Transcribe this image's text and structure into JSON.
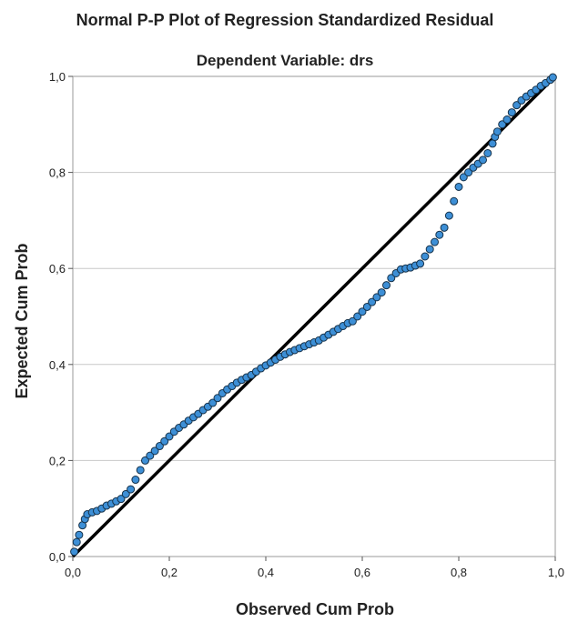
{
  "chart_data": {
    "type": "scatter",
    "title": "Normal P-P Plot of Regression Standardized Residual",
    "subtitle": "Dependent Variable: drs",
    "xlabel": "Observed Cum Prob",
    "ylabel": "Expected Cum Prob",
    "xlim": [
      0,
      1
    ],
    "ylim": [
      0,
      1
    ],
    "x_ticks": [
      "0,0",
      "0,2",
      "0,4",
      "0,6",
      "0,8",
      "1,0"
    ],
    "y_ticks": [
      "0,0",
      "0,2",
      "0,4",
      "0,6",
      "0,8",
      "1,0"
    ],
    "grid": "horizontal",
    "reference_line": [
      [
        0,
        0
      ],
      [
        1,
        1
      ]
    ],
    "colors": {
      "point_fill": "#3d8fd6",
      "point_stroke": "#16324a",
      "line": "#000000",
      "grid": "#c8c8c8",
      "frame": "#9a9a9a"
    },
    "points": [
      [
        0.003,
        0.01
      ],
      [
        0.008,
        0.03
      ],
      [
        0.013,
        0.045
      ],
      [
        0.02,
        0.065
      ],
      [
        0.025,
        0.078
      ],
      [
        0.03,
        0.088
      ],
      [
        0.04,
        0.092
      ],
      [
        0.05,
        0.095
      ],
      [
        0.06,
        0.1
      ],
      [
        0.07,
        0.106
      ],
      [
        0.08,
        0.11
      ],
      [
        0.09,
        0.115
      ],
      [
        0.1,
        0.12
      ],
      [
        0.11,
        0.13
      ],
      [
        0.12,
        0.14
      ],
      [
        0.13,
        0.16
      ],
      [
        0.14,
        0.18
      ],
      [
        0.15,
        0.2
      ],
      [
        0.16,
        0.21
      ],
      [
        0.17,
        0.22
      ],
      [
        0.18,
        0.23
      ],
      [
        0.19,
        0.24
      ],
      [
        0.2,
        0.25
      ],
      [
        0.21,
        0.26
      ],
      [
        0.22,
        0.268
      ],
      [
        0.23,
        0.275
      ],
      [
        0.24,
        0.283
      ],
      [
        0.25,
        0.29
      ],
      [
        0.26,
        0.297
      ],
      [
        0.27,
        0.305
      ],
      [
        0.28,
        0.312
      ],
      [
        0.29,
        0.32
      ],
      [
        0.3,
        0.33
      ],
      [
        0.31,
        0.34
      ],
      [
        0.32,
        0.348
      ],
      [
        0.33,
        0.355
      ],
      [
        0.34,
        0.362
      ],
      [
        0.35,
        0.368
      ],
      [
        0.36,
        0.373
      ],
      [
        0.37,
        0.378
      ],
      [
        0.38,
        0.385
      ],
      [
        0.39,
        0.392
      ],
      [
        0.4,
        0.398
      ],
      [
        0.41,
        0.404
      ],
      [
        0.42,
        0.41
      ],
      [
        0.43,
        0.416
      ],
      [
        0.44,
        0.421
      ],
      [
        0.45,
        0.426
      ],
      [
        0.46,
        0.43
      ],
      [
        0.47,
        0.434
      ],
      [
        0.48,
        0.438
      ],
      [
        0.49,
        0.442
      ],
      [
        0.5,
        0.446
      ],
      [
        0.51,
        0.45
      ],
      [
        0.52,
        0.456
      ],
      [
        0.53,
        0.462
      ],
      [
        0.54,
        0.468
      ],
      [
        0.55,
        0.474
      ],
      [
        0.56,
        0.48
      ],
      [
        0.57,
        0.486
      ],
      [
        0.58,
        0.49
      ],
      [
        0.59,
        0.5
      ],
      [
        0.6,
        0.51
      ],
      [
        0.61,
        0.52
      ],
      [
        0.62,
        0.53
      ],
      [
        0.63,
        0.54
      ],
      [
        0.64,
        0.55
      ],
      [
        0.65,
        0.565
      ],
      [
        0.66,
        0.58
      ],
      [
        0.67,
        0.59
      ],
      [
        0.68,
        0.598
      ],
      [
        0.69,
        0.6
      ],
      [
        0.7,
        0.602
      ],
      [
        0.71,
        0.606
      ],
      [
        0.72,
        0.61
      ],
      [
        0.73,
        0.625
      ],
      [
        0.74,
        0.64
      ],
      [
        0.75,
        0.655
      ],
      [
        0.76,
        0.67
      ],
      [
        0.77,
        0.685
      ],
      [
        0.78,
        0.71
      ],
      [
        0.79,
        0.74
      ],
      [
        0.8,
        0.77
      ],
      [
        0.81,
        0.79
      ],
      [
        0.82,
        0.8
      ],
      [
        0.83,
        0.81
      ],
      [
        0.84,
        0.818
      ],
      [
        0.85,
        0.826
      ],
      [
        0.86,
        0.84
      ],
      [
        0.87,
        0.86
      ],
      [
        0.875,
        0.874
      ],
      [
        0.88,
        0.885
      ],
      [
        0.89,
        0.9
      ],
      [
        0.9,
        0.91
      ],
      [
        0.91,
        0.925
      ],
      [
        0.92,
        0.94
      ],
      [
        0.93,
        0.95
      ],
      [
        0.94,
        0.958
      ],
      [
        0.95,
        0.965
      ],
      [
        0.96,
        0.972
      ],
      [
        0.97,
        0.98
      ],
      [
        0.98,
        0.986
      ],
      [
        0.99,
        0.993
      ],
      [
        0.995,
        0.998
      ]
    ]
  }
}
